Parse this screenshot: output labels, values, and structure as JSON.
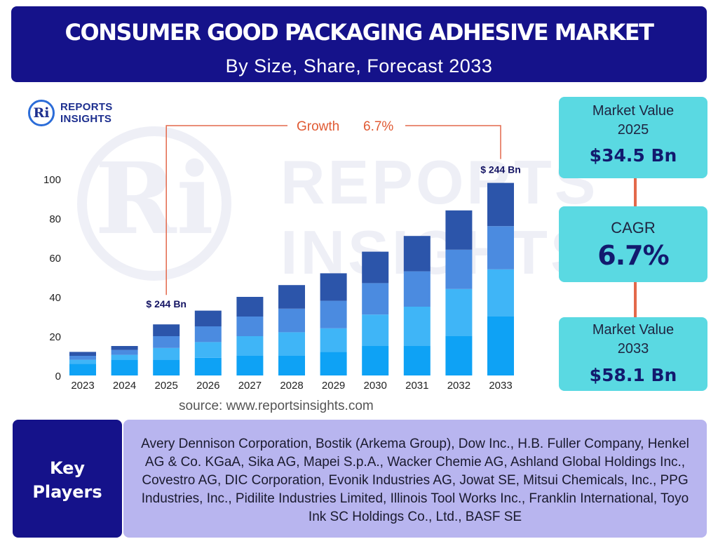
{
  "header": {
    "title": "CONSUMER GOOD PACKAGING ADHESIVE MARKET",
    "subtitle": "By Size, Share, Forecast 2033"
  },
  "logo": {
    "badge": "Ri",
    "line1": "REPORTS",
    "line2": "INSIGHTS"
  },
  "source": "source: www.reportsinsights.com",
  "side_boxes": {
    "market_value_2025": {
      "label_line1": "Market Value",
      "label_line2": "2025",
      "value": "$34.5 Bn"
    },
    "cagr": {
      "label": "CAGR",
      "value": "6.7%"
    },
    "market_value_2033": {
      "label_line1": "Market Value",
      "label_line2": "2033",
      "value": "$58.1 Bn"
    }
  },
  "key_players": {
    "heading_line1": "Key",
    "heading_line2": "Players",
    "list": "Avery Dennison Corporation, Bostik (Arkema Group), Dow Inc., H.B. Fuller Company, Henkel AG & Co. KGaA, Sika AG, Mapei S.p.A., Wacker Chemie AG, Ashland Global Holdings Inc., Covestro AG, DIC Corporation, Evonik Industries AG, Jowat SE, Mitsui Chemicals, Inc., PPG Industries, Inc., Pidilite Industries Limited, Illinois Tool Works Inc., Franklin International, Toyo Ink SC Holdings Co., Ltd., BASF SE"
  },
  "colors": {
    "header_bg": "#15128a",
    "side_box_bg": "#5ad9e2",
    "players_bg": "#b8b5ef",
    "growth_line": "#e3694b",
    "series": [
      "#0ea2f5",
      "#3fb5f7",
      "#4b8be0",
      "#2c55aa"
    ]
  },
  "chart_data": {
    "type": "bar",
    "stacked": true,
    "categories": [
      "2023",
      "2024",
      "2025",
      "2026",
      "2027",
      "2028",
      "2029",
      "2030",
      "2031",
      "2032",
      "2033"
    ],
    "series": [
      {
        "values": [
          6,
          8,
          8,
          9,
          10,
          10,
          12,
          15,
          15,
          20,
          30
        ]
      },
      {
        "values": [
          2,
          2.5,
          6,
          8,
          10,
          12,
          12,
          16,
          20,
          24,
          24
        ]
      },
      {
        "values": [
          2,
          2.5,
          6,
          8,
          10,
          12,
          14,
          16,
          18,
          20,
          22
        ]
      },
      {
        "values": [
          2,
          2,
          6,
          8,
          10,
          12,
          14,
          16,
          18,
          20,
          22
        ]
      }
    ],
    "yticks": [
      0,
      20,
      40,
      60,
      80,
      100
    ],
    "ylim": [
      0,
      100
    ],
    "annotations": {
      "growth_label": "Growth",
      "growth_value": "6.7%",
      "start_label": "$ 244 Bn",
      "end_label": "$ 244 Bn"
    }
  }
}
